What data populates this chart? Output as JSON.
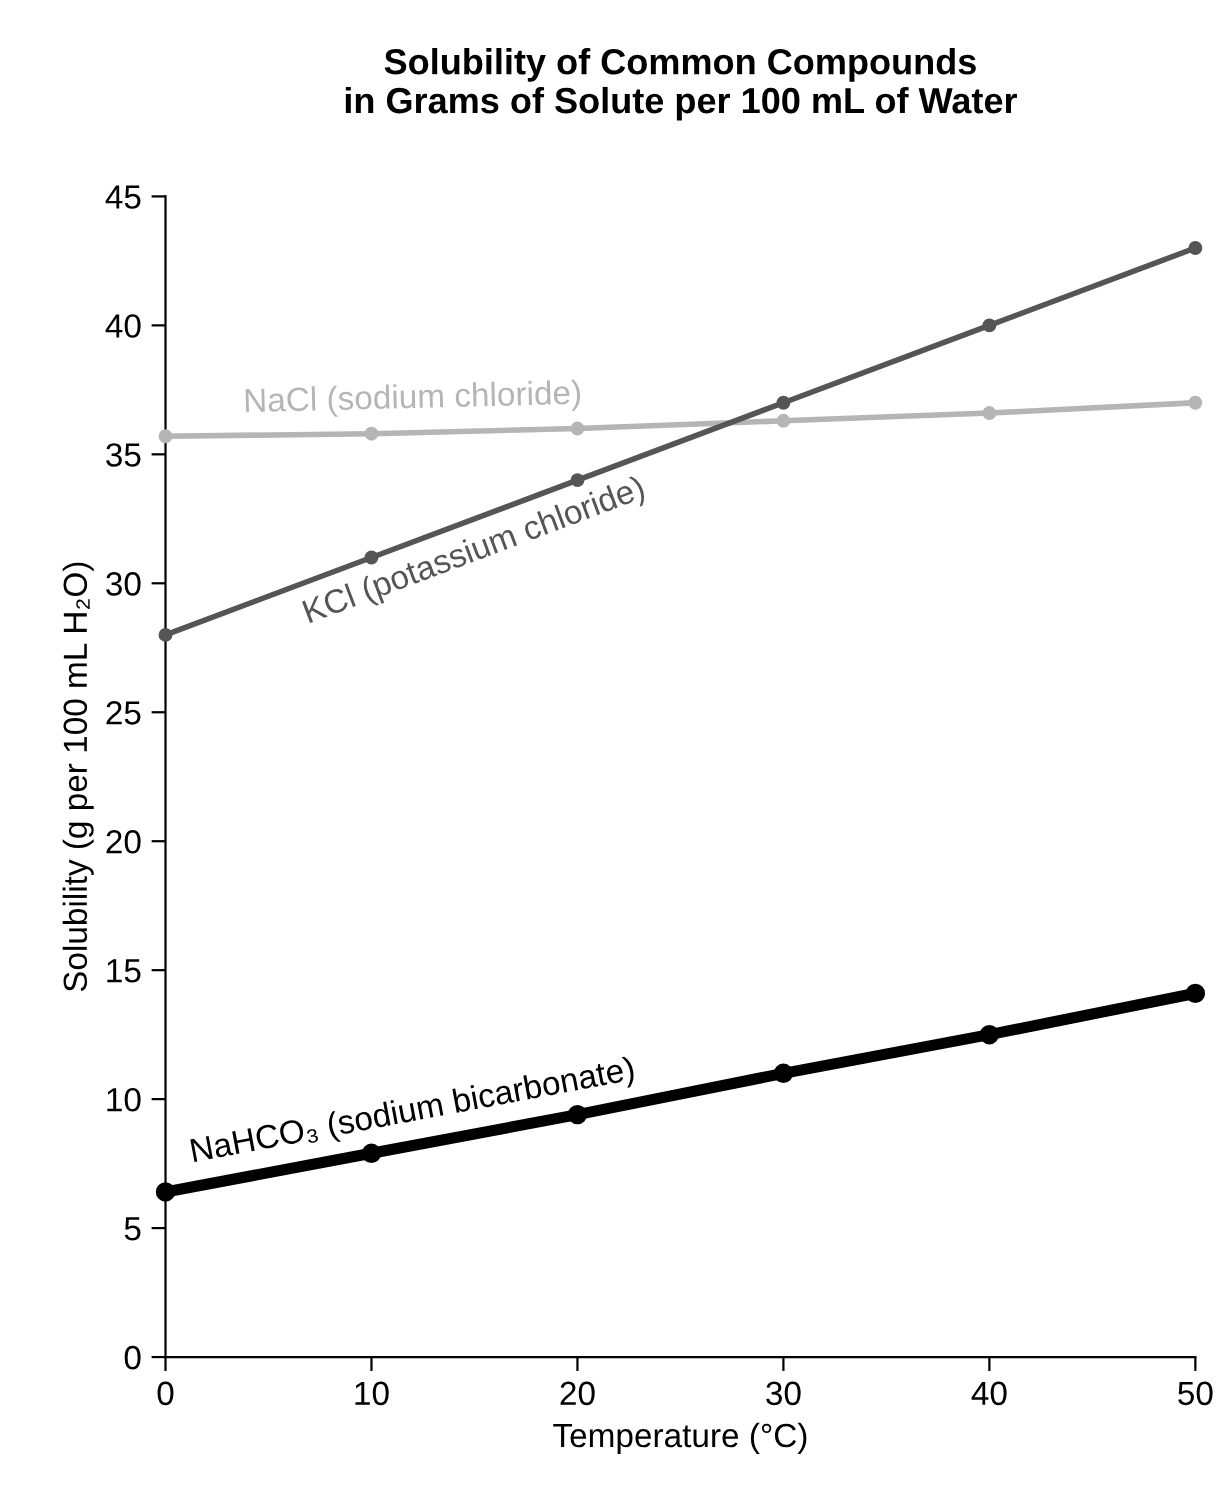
{
  "chart_data": {
    "type": "line",
    "title": "Solubility of Common Compounds\nin Grams of Solute per 100 mL of Water",
    "xlabel": "Temperature (°C)",
    "ylabel": "Solubility (g per 100 mL H₂O)",
    "x": [
      0,
      10,
      20,
      30,
      40,
      50
    ],
    "series": [
      {
        "name": "NaCl (sodium chloride)",
        "color": "#b5b5b5",
        "values": [
          35.7,
          35.8,
          36.0,
          36.3,
          36.6,
          37.0
        ]
      },
      {
        "name": "KCl (potassium chloride)",
        "color": "#555555",
        "values": [
          28,
          31,
          34,
          37,
          40,
          43
        ]
      },
      {
        "name": "NaHCO₃ (sodium bicarbonate)",
        "color": "#000000",
        "values": [
          6.4,
          7.9,
          9.4,
          11.0,
          12.5,
          14.1
        ]
      }
    ],
    "xlim": [
      0,
      50
    ],
    "xticks": [
      0,
      10,
      20,
      30,
      40,
      50
    ],
    "ylim": [
      0,
      45
    ],
    "yticks": [
      0,
      5,
      10,
      15,
      20,
      25,
      30,
      35,
      40,
      45
    ],
    "grid": false,
    "legend": false,
    "marker": "circle",
    "line_style": "solid"
  }
}
